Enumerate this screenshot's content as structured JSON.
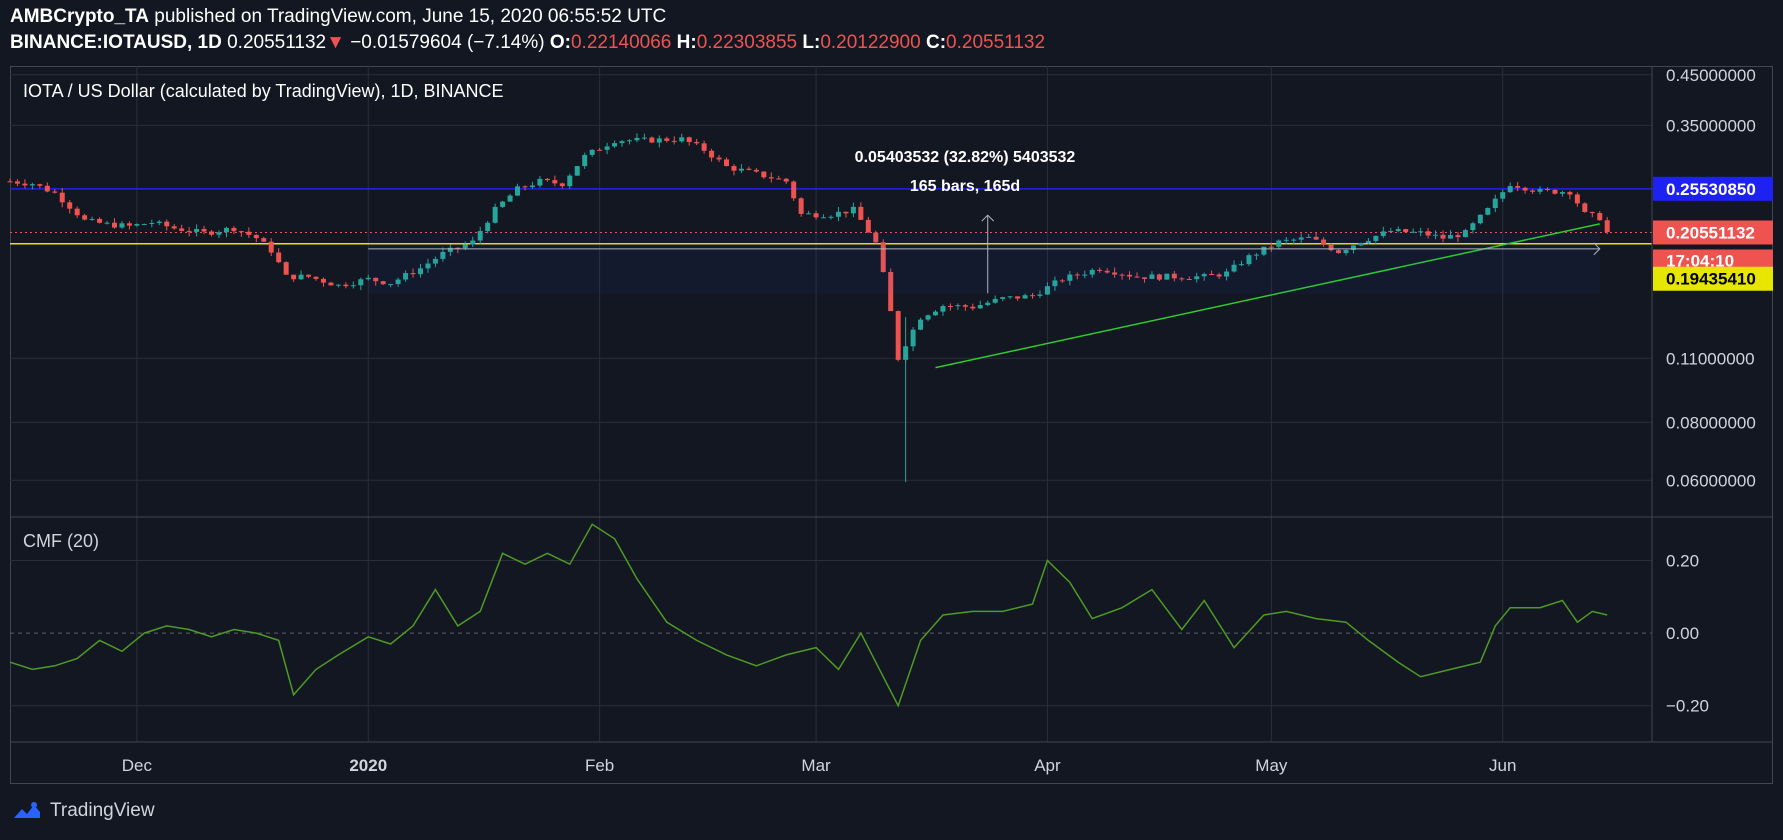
{
  "header": {
    "author": "AMBCrypto_TA",
    "published_text": "published on TradingView.com, June 15, 2020 06:55:52 UTC",
    "symbol": "BINANCE:IOTAUSD, 1D",
    "last_price": "0.20551132",
    "change_arrow": "▼",
    "change": "−0.01579604 (−7.14%)",
    "o_label": "O:",
    "o_value": "0.22140066",
    "h_label": "H:",
    "h_value": "0.22303855",
    "l_label": "L:",
    "l_value": "0.20122900",
    "c_label": "C:",
    "c_value": "0.20551132"
  },
  "footer": {
    "brand": "TradingView",
    "icon": "tradingview-logo-icon"
  },
  "colors": {
    "background": "#131722",
    "up": "#26a69a",
    "down": "#ef5350",
    "grid": "#2a2e39",
    "resistance": "#1e22f0",
    "support": "#e6e600",
    "trendline": "#2ecc2e",
    "cmf": "#4e9a25"
  },
  "chart_data": [
    {
      "type": "candlestick",
      "title": "IOTA / US Dollar (calculated by TradingView), 1D, BINANCE",
      "y_scale": "log",
      "ylim": [
        0.05,
        0.47
      ],
      "y_ticks": [
        "0.45000000",
        "0.35000000",
        "0.11000000",
        "0.08000000",
        "0.06000000"
      ],
      "x_ticks": [
        "Dec",
        "2020",
        "Feb",
        "Mar",
        "Apr",
        "May",
        "Jun"
      ],
      "x_range": [
        "2019-11-14",
        "2020-06-21"
      ],
      "grid": true,
      "price_labels": {
        "resistance": "0.25530850",
        "last": "0.20551132",
        "countdown": "17:04:10",
        "support": "0.19435410"
      },
      "horizontal_lines": {
        "resistance": 0.2553085,
        "support": 0.1943541,
        "last_price": 0.20551132
      },
      "measure": {
        "text": "0.05403532 (32.82%) 5403532",
        "bars_text": "165 bars, 165d"
      },
      "trendline": [
        [
          "2020-03-17",
          0.105
        ],
        [
          "2020-06-14",
          0.2145
        ]
      ],
      "close_series": [
        [
          "2019-11-14",
          0.265
        ],
        [
          "2019-11-17",
          0.262
        ],
        [
          "2019-11-20",
          0.25
        ],
        [
          "2019-11-22",
          0.234
        ],
        [
          "2019-11-24",
          0.218
        ],
        [
          "2019-11-27",
          0.214
        ],
        [
          "2019-11-30",
          0.212
        ],
        [
          "2019-12-03",
          0.216
        ],
        [
          "2019-12-06",
          0.21
        ],
        [
          "2019-12-10",
          0.205
        ],
        [
          "2019-12-14",
          0.21
        ],
        [
          "2019-12-17",
          0.2
        ],
        [
          "2019-12-19",
          0.188
        ],
        [
          "2019-12-21",
          0.165
        ],
        [
          "2019-12-24",
          0.165
        ],
        [
          "2019-12-28",
          0.158
        ],
        [
          "2020-01-01",
          0.163
        ],
        [
          "2020-01-04",
          0.16
        ],
        [
          "2020-01-08",
          0.172
        ],
        [
          "2020-01-11",
          0.185
        ],
        [
          "2020-01-15",
          0.196
        ],
        [
          "2020-01-18",
          0.23
        ],
        [
          "2020-01-21",
          0.255
        ],
        [
          "2020-01-24",
          0.265
        ],
        [
          "2020-01-27",
          0.262
        ],
        [
          "2020-01-30",
          0.3
        ],
        [
          "2020-02-03",
          0.325
        ],
        [
          "2020-02-07",
          0.325
        ],
        [
          "2020-02-12",
          0.327
        ],
        [
          "2020-02-15",
          0.31
        ],
        [
          "2020-02-18",
          0.285
        ],
        [
          "2020-02-22",
          0.275
        ],
        [
          "2020-02-26",
          0.265
        ],
        [
          "2020-02-28",
          0.225
        ],
        [
          "2020-03-03",
          0.225
        ],
        [
          "2020-03-06",
          0.23
        ],
        [
          "2020-03-09",
          0.195
        ],
        [
          "2020-03-12",
          0.11
        ],
        [
          "2020-03-15",
          0.135
        ],
        [
          "2020-03-18",
          0.143
        ],
        [
          "2020-03-22",
          0.142
        ],
        [
          "2020-03-26",
          0.148
        ],
        [
          "2020-03-30",
          0.15
        ],
        [
          "2020-04-03",
          0.163
        ],
        [
          "2020-04-08",
          0.172
        ],
        [
          "2020-04-13",
          0.165
        ],
        [
          "2020-04-18",
          0.165
        ],
        [
          "2020-04-22",
          0.165
        ],
        [
          "2020-04-25",
          0.168
        ],
        [
          "2020-04-28",
          0.182
        ],
        [
          "2020-05-02",
          0.196
        ],
        [
          "2020-05-06",
          0.2
        ],
        [
          "2020-05-10",
          0.187
        ],
        [
          "2020-05-13",
          0.197
        ],
        [
          "2020-05-17",
          0.207
        ],
        [
          "2020-05-21",
          0.205
        ],
        [
          "2020-05-24",
          0.2
        ],
        [
          "2020-05-27",
          0.205
        ],
        [
          "2020-05-30",
          0.23
        ],
        [
          "2020-06-02",
          0.262
        ],
        [
          "2020-06-06",
          0.252
        ],
        [
          "2020-06-10",
          0.252
        ],
        [
          "2020-06-12",
          0.225
        ],
        [
          "2020-06-14",
          0.2213
        ],
        [
          "2020-06-15",
          0.2055
        ]
      ]
    },
    {
      "type": "line",
      "title": "CMF (20)",
      "ylim": [
        -0.3,
        0.32
      ],
      "y_ticks": [
        "0.20",
        "0.00",
        "−0.20"
      ],
      "zero_line": true,
      "series": [
        {
          "values": [
            [
              "2019-11-14",
              -0.08
            ],
            [
              "2019-11-17",
              -0.1
            ],
            [
              "2019-11-20",
              -0.09
            ],
            [
              "2019-11-23",
              -0.07
            ],
            [
              "2019-11-26",
              -0.02
            ],
            [
              "2019-11-29",
              -0.05
            ],
            [
              "2019-12-02",
              0.0
            ],
            [
              "2019-12-05",
              0.02
            ],
            [
              "2019-12-08",
              0.01
            ],
            [
              "2019-12-11",
              -0.01
            ],
            [
              "2019-12-14",
              0.01
            ],
            [
              "2019-12-17",
              0.0
            ],
            [
              "2019-12-20",
              -0.02
            ],
            [
              "2019-12-22",
              -0.17
            ],
            [
              "2019-12-25",
              -0.1
            ],
            [
              "2019-12-28",
              -0.06
            ],
            [
              "2020-01-01",
              -0.01
            ],
            [
              "2020-01-04",
              -0.03
            ],
            [
              "2020-01-07",
              0.02
            ],
            [
              "2020-01-10",
              0.12
            ],
            [
              "2020-01-13",
              0.02
            ],
            [
              "2020-01-16",
              0.06
            ],
            [
              "2020-01-19",
              0.22
            ],
            [
              "2020-01-22",
              0.19
            ],
            [
              "2020-01-25",
              0.22
            ],
            [
              "2020-01-28",
              0.19
            ],
            [
              "2020-01-31",
              0.3
            ],
            [
              "2020-02-03",
              0.26
            ],
            [
              "2020-02-06",
              0.15
            ],
            [
              "2020-02-10",
              0.03
            ],
            [
              "2020-02-14",
              -0.02
            ],
            [
              "2020-02-18",
              -0.06
            ],
            [
              "2020-02-22",
              -0.09
            ],
            [
              "2020-02-26",
              -0.06
            ],
            [
              "2020-03-01",
              -0.04
            ],
            [
              "2020-03-04",
              -0.1
            ],
            [
              "2020-03-07",
              0.0
            ],
            [
              "2020-03-10",
              -0.12
            ],
            [
              "2020-03-12",
              -0.2
            ],
            [
              "2020-03-15",
              -0.02
            ],
            [
              "2020-03-18",
              0.05
            ],
            [
              "2020-03-22",
              0.06
            ],
            [
              "2020-03-26",
              0.06
            ],
            [
              "2020-03-30",
              0.08
            ],
            [
              "2020-04-01",
              0.2
            ],
            [
              "2020-04-04",
              0.14
            ],
            [
              "2020-04-07",
              0.04
            ],
            [
              "2020-04-11",
              0.07
            ],
            [
              "2020-04-15",
              0.12
            ],
            [
              "2020-04-19",
              0.01
            ],
            [
              "2020-04-22",
              0.09
            ],
            [
              "2020-04-26",
              -0.04
            ],
            [
              "2020-04-30",
              0.05
            ],
            [
              "2020-05-03",
              0.06
            ],
            [
              "2020-05-07",
              0.04
            ],
            [
              "2020-05-11",
              0.03
            ],
            [
              "2020-05-14",
              -0.02
            ],
            [
              "2020-05-18",
              -0.08
            ],
            [
              "2020-05-21",
              -0.12
            ],
            [
              "2020-05-25",
              -0.1
            ],
            [
              "2020-05-29",
              -0.08
            ],
            [
              "2020-05-31",
              0.02
            ],
            [
              "2020-06-02",
              0.07
            ],
            [
              "2020-06-06",
              0.07
            ],
            [
              "2020-06-09",
              0.09
            ],
            [
              "2020-06-11",
              0.03
            ],
            [
              "2020-06-13",
              0.06
            ],
            [
              "2020-06-15",
              0.05
            ]
          ]
        }
      ]
    }
  ]
}
